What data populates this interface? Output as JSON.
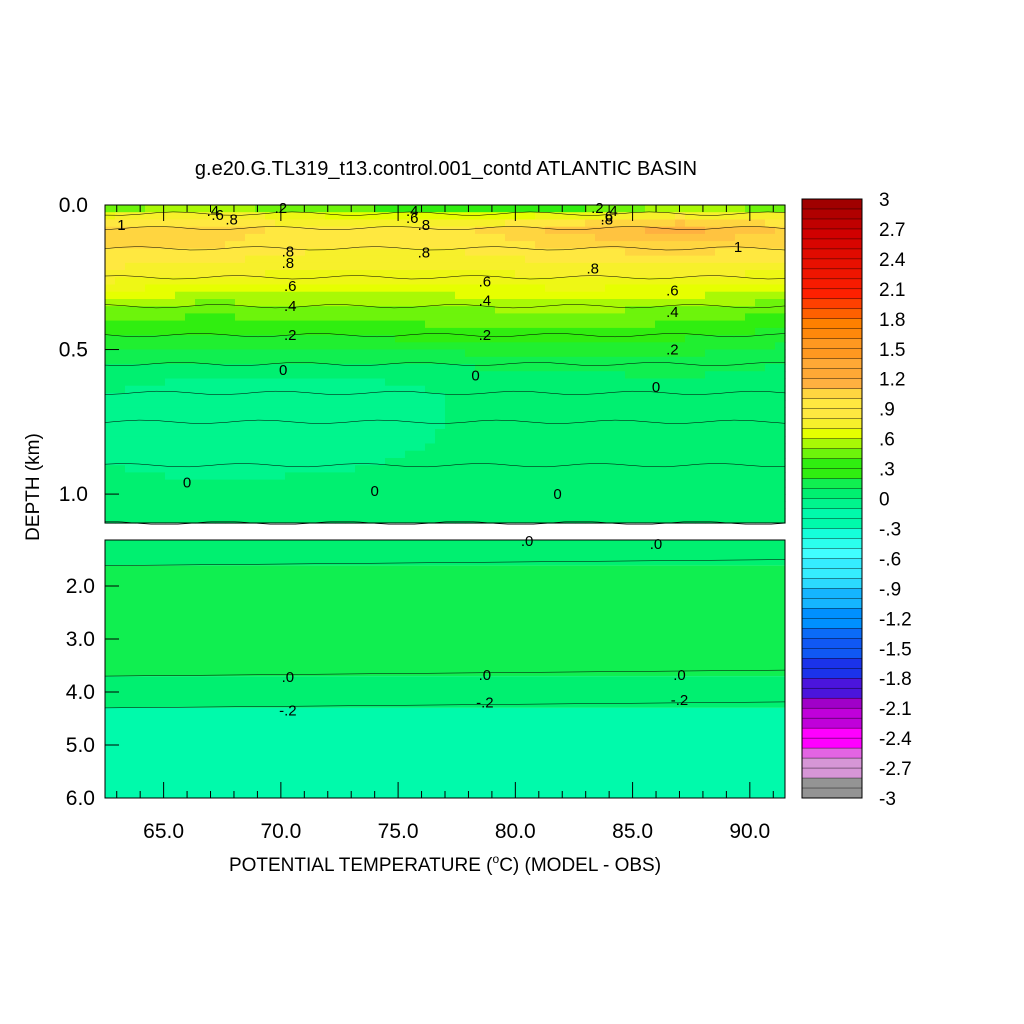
{
  "chart_data": {
    "type": "heatmap",
    "title": "g.e20.G.TL319_t13.control.001_contd ATLANTIC BASIN",
    "xlabel_prefix": "POTENTIAL TEMPERATURE (",
    "xlabel_degree": "o",
    "xlabel_suffix": "C) (MODEL - OBS)",
    "ylabel": "DEPTH (km)",
    "xlim": [
      62.5,
      91.5
    ],
    "x_ticks": [
      "65.0",
      "70.0",
      "75.0",
      "80.0",
      "85.0",
      "90.0"
    ],
    "upper_panel": {
      "ylim": [
        0.0,
        1.1
      ],
      "y_ticks": [
        "0.0",
        "0.5",
        "1.0"
      ]
    },
    "lower_panel": {
      "ylim": [
        1.1,
        6.0
      ],
      "y_ticks": [
        "2.0",
        "3.0",
        "4.0",
        "5.0",
        "6.0"
      ]
    },
    "colorbar": {
      "min": -3,
      "max": 3,
      "step": 0.1,
      "labels": [
        "3",
        "2.7",
        "2.4",
        "2.1",
        "1.8",
        "1.5",
        "1.2",
        ".9",
        ".6",
        ".3",
        "0",
        "-.3",
        "-.6",
        "-.9",
        "-1.2",
        "-1.5",
        "-1.8",
        "-2.1",
        "-2.4",
        "-2.7",
        "-3"
      ]
    },
    "fields": {
      "upper_rows": [
        {
          "depth": 0.0,
          "values": [
            0.2,
            0.3,
            0.2,
            0.2,
            0.1,
            0.3,
            0.2
          ]
        },
        {
          "depth": 0.03,
          "values": [
            0.7,
            0.8,
            0.6,
            0.5,
            0.6,
            0.8,
            0.7
          ]
        },
        {
          "depth": 0.08,
          "values": [
            1.0,
            1.0,
            0.9,
            0.9,
            1.1,
            1.2,
            1.05
          ]
        },
        {
          "depth": 0.15,
          "values": [
            0.95,
            0.95,
            0.85,
            0.85,
            0.95,
            1.0,
            0.95
          ]
        },
        {
          "depth": 0.25,
          "values": [
            0.8,
            0.75,
            0.7,
            0.7,
            0.75,
            0.75,
            0.7
          ]
        },
        {
          "depth": 0.35,
          "values": [
            0.45,
            0.4,
            0.45,
            0.45,
            0.5,
            0.45,
            0.4
          ]
        },
        {
          "depth": 0.45,
          "values": [
            0.25,
            0.25,
            0.25,
            0.3,
            0.3,
            0.28,
            0.2
          ]
        },
        {
          "depth": 0.55,
          "values": [
            0.05,
            0.05,
            0.03,
            0.05,
            0.1,
            0.1,
            0.05
          ]
        },
        {
          "depth": 0.65,
          "values": [
            -0.05,
            -0.15,
            -0.15,
            -0.05,
            -0.05,
            -0.02,
            0.0
          ]
        },
        {
          "depth": 0.75,
          "values": [
            -0.1,
            -0.12,
            -0.15,
            -0.05,
            -0.02,
            0.0,
            0.0
          ]
        },
        {
          "depth": 0.9,
          "values": [
            -0.05,
            -0.06,
            -0.06,
            -0.03,
            -0.01,
            0.0,
            0.0
          ]
        },
        {
          "depth": 1.1,
          "values": [
            -0.03,
            -0.02,
            0.0,
            0.0,
            0.0,
            0.0,
            0.02
          ]
        }
      ],
      "x_nodes": [
        62.5,
        67.0,
        72.0,
        77.0,
        82.0,
        87.0,
        91.5
      ],
      "lower_bands": [
        {
          "from": 1.1,
          "to": 1.6,
          "value": 0.0
        },
        {
          "from": 1.6,
          "to": 3.7,
          "value": 0.1
        },
        {
          "from": 3.7,
          "to": 4.3,
          "value": 0.0
        },
        {
          "from": 4.3,
          "to": 6.0,
          "value": -0.25
        }
      ]
    },
    "contour_labels": [
      {
        "text": "1",
        "x": 63.2,
        "y": 0.07,
        "panel": "upper"
      },
      {
        "text": ".4",
        "x": 67.1,
        "y": 0.02,
        "panel": "upper"
      },
      {
        "text": ".6",
        "x": 67.3,
        "y": 0.035,
        "panel": "upper"
      },
      {
        "text": ".8",
        "x": 67.9,
        "y": 0.05,
        "panel": "upper"
      },
      {
        "text": ".2",
        "x": 70.0,
        "y": 0.01,
        "panel": "upper"
      },
      {
        "text": ".4",
        "x": 75.6,
        "y": 0.02,
        "panel": "upper"
      },
      {
        "text": ".6",
        "x": 75.6,
        "y": 0.045,
        "panel": "upper"
      },
      {
        "text": ".8",
        "x": 76.1,
        "y": 0.07,
        "panel": "upper"
      },
      {
        "text": ".2",
        "x": 83.5,
        "y": 0.01,
        "panel": "upper"
      },
      {
        "text": ".4",
        "x": 84.1,
        "y": 0.02,
        "panel": "upper"
      },
      {
        "text": ".6",
        "x": 83.9,
        "y": 0.04,
        "panel": "upper"
      },
      {
        "text": ".8",
        "x": 83.9,
        "y": 0.05,
        "panel": "upper"
      },
      {
        "text": "1",
        "x": 89.5,
        "y": 0.145,
        "panel": "upper"
      },
      {
        "text": ".8",
        "x": 70.3,
        "y": 0.16,
        "panel": "upper"
      },
      {
        "text": ".8",
        "x": 70.3,
        "y": 0.2,
        "panel": "upper"
      },
      {
        "text": ".8",
        "x": 76.1,
        "y": 0.165,
        "panel": "upper"
      },
      {
        "text": ".8",
        "x": 83.3,
        "y": 0.22,
        "panel": "upper"
      },
      {
        "text": ".6",
        "x": 70.4,
        "y": 0.28,
        "panel": "upper"
      },
      {
        "text": ".6",
        "x": 78.7,
        "y": 0.265,
        "panel": "upper"
      },
      {
        "text": ".6",
        "x": 86.7,
        "y": 0.295,
        "panel": "upper"
      },
      {
        "text": ".4",
        "x": 70.4,
        "y": 0.35,
        "panel": "upper"
      },
      {
        "text": ".4",
        "x": 78.7,
        "y": 0.33,
        "panel": "upper"
      },
      {
        "text": ".4",
        "x": 86.7,
        "y": 0.37,
        "panel": "upper"
      },
      {
        "text": ".2",
        "x": 70.4,
        "y": 0.45,
        "panel": "upper"
      },
      {
        "text": ".2",
        "x": 78.7,
        "y": 0.45,
        "panel": "upper"
      },
      {
        "text": ".2",
        "x": 86.7,
        "y": 0.5,
        "panel": "upper"
      },
      {
        "text": "0",
        "x": 70.1,
        "y": 0.57,
        "panel": "upper"
      },
      {
        "text": "0",
        "x": 78.3,
        "y": 0.59,
        "panel": "upper"
      },
      {
        "text": "0",
        "x": 86.0,
        "y": 0.63,
        "panel": "upper"
      },
      {
        "text": "0",
        "x": 66.0,
        "y": 0.96,
        "panel": "upper"
      },
      {
        "text": "0",
        "x": 74.0,
        "y": 0.99,
        "panel": "upper"
      },
      {
        "text": "0",
        "x": 81.8,
        "y": 1.0,
        "panel": "upper"
      },
      {
        "text": ".0",
        "x": 80.5,
        "y": 1.12,
        "panel": "lower"
      },
      {
        "text": ".0",
        "x": 86.0,
        "y": 1.18,
        "panel": "lower"
      },
      {
        "text": ".0",
        "x": 70.3,
        "y": 3.72,
        "panel": "lower"
      },
      {
        "text": ".0",
        "x": 78.7,
        "y": 3.68,
        "panel": "lower"
      },
      {
        "text": ".0",
        "x": 87.0,
        "y": 3.68,
        "panel": "lower"
      },
      {
        "text": "-.2",
        "x": 70.3,
        "y": 4.35,
        "panel": "lower"
      },
      {
        "text": "-.2",
        "x": 78.7,
        "y": 4.2,
        "panel": "lower"
      },
      {
        "text": "-.2",
        "x": 87.0,
        "y": 4.15,
        "panel": "lower"
      }
    ],
    "grid": false,
    "legend": "right"
  }
}
